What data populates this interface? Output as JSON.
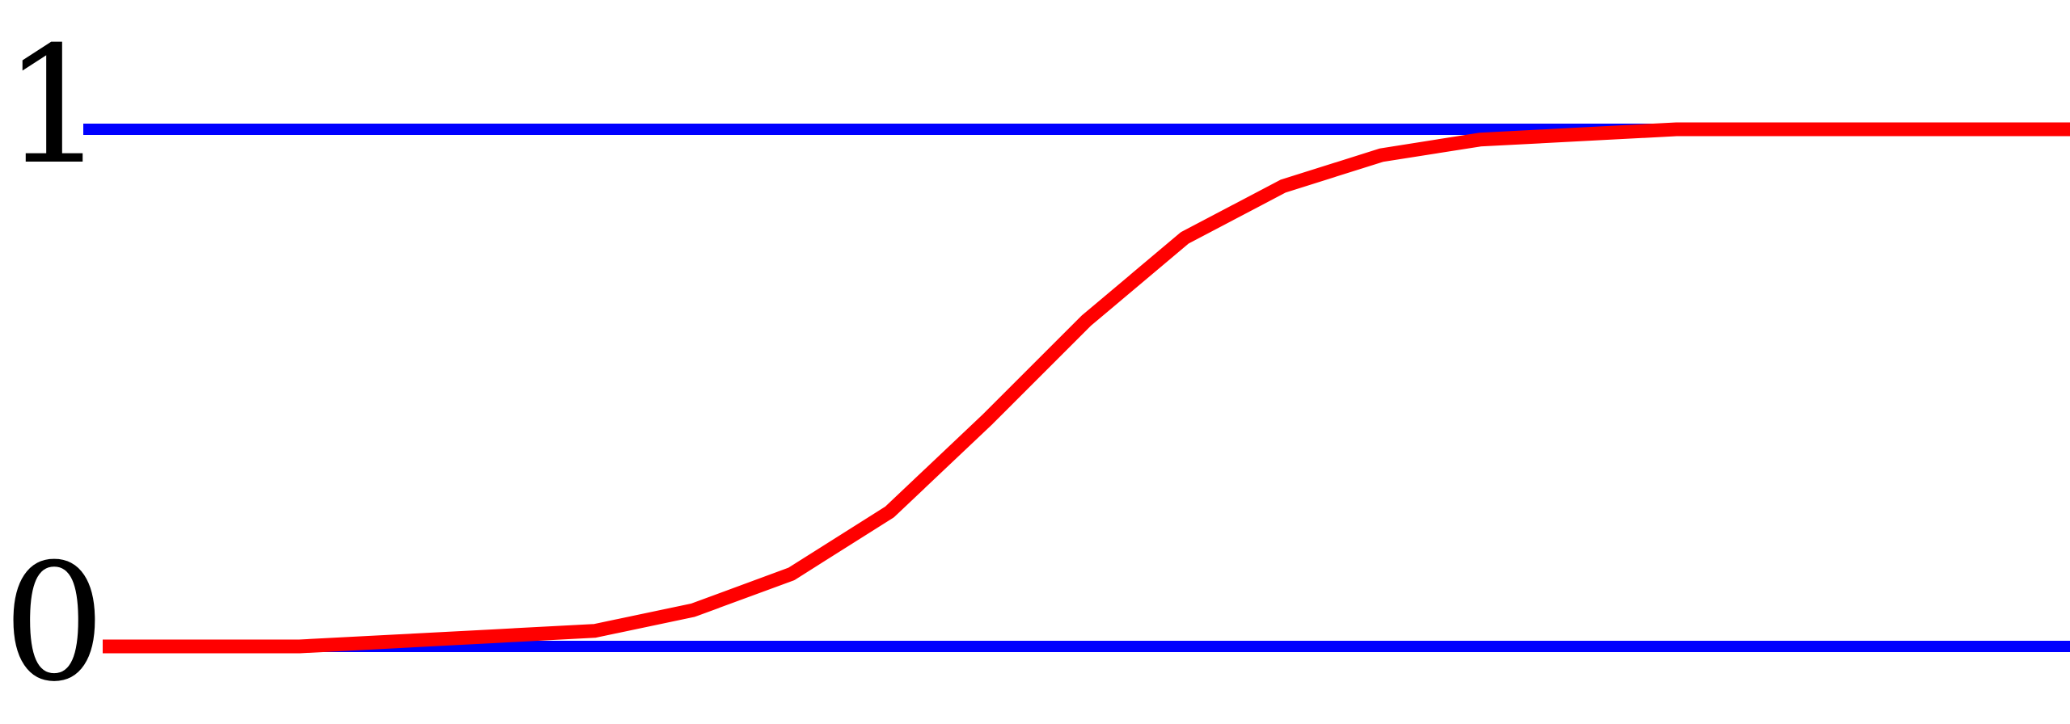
{
  "chart_data": {
    "type": "line",
    "x": [
      0,
      0.05,
      0.1,
      0.15,
      0.2,
      0.25,
      0.3,
      0.35,
      0.4,
      0.45,
      0.5,
      0.55,
      0.6,
      0.65,
      0.7,
      0.75,
      0.8,
      0.85,
      0.9,
      0.95,
      1
    ],
    "xlim": [
      0,
      1
    ],
    "series": [
      {
        "color": "#ff0000",
        "values": [
          0,
          0,
          0,
          0.01,
          0.02,
          0.03,
          0.07,
          0.14,
          0.26,
          0.44,
          0.63,
          0.79,
          0.89,
          0.95,
          0.98,
          0.99,
          1,
          1,
          1,
          1,
          1
        ]
      }
    ],
    "ylim": [
      0,
      1
    ],
    "yticks": [
      0,
      1
    ],
    "grid": true,
    "grid_color": "#0000ff"
  }
}
